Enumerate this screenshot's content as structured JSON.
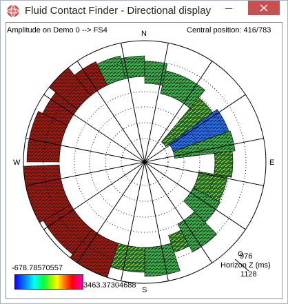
{
  "window": {
    "title": "Fluid Contact Finder - Directional display",
    "close_symbol": "✕"
  },
  "header": {
    "amplitude_label": "Amplitude on  Demo 0 --> FS4",
    "central_position": "Central position: 416/783"
  },
  "compass": {
    "north": "N",
    "east": "E",
    "south": "S",
    "west": "W"
  },
  "legend": {
    "min_value": "-678.78570557",
    "max_value": "3463.37304688"
  },
  "depth_legend": {
    "top_value": "976",
    "label": "Horizon Z (ms)",
    "bottom_value": "1128"
  },
  "icons": {
    "app": "fluid-contact-app-icon",
    "minimize": "minimize-icon",
    "close": "close-icon"
  },
  "colors": {
    "close_button": "#c75050",
    "background": "#ffffff",
    "colorbar": [
      "#1000ff",
      "#00a0ff",
      "#00ffff",
      "#00ff40",
      "#a0ff00",
      "#ffff00",
      "#ff8000",
      "#ff0000",
      "#ff00c0"
    ]
  }
}
